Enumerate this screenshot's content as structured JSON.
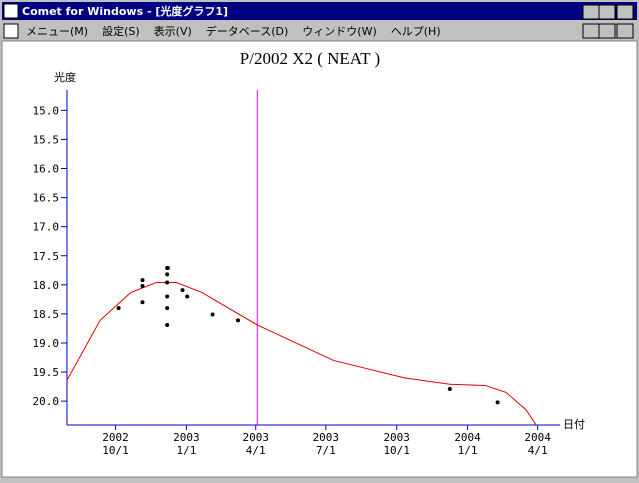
{
  "window": {
    "title": "Comet for Windows - [光度グラフ1]"
  },
  "menu": [
    "メニュー(M)",
    "設定(S)",
    "表示(V)",
    "データベース(D)",
    "ウィンドウ(W)",
    "ヘルプ(H)"
  ],
  "chart_data": {
    "type": "scatter",
    "title": "P/2002 X2 ( NEAT )",
    "ylabel": "光度",
    "xlabel": "日付",
    "x": [
      "2002-10-05",
      "2002-11-05",
      "2002-11-05",
      "2002-11-05",
      "2002-12-07",
      "2002-12-08",
      "2002-12-07",
      "2002-12-07",
      "2002-12-07",
      "2002-12-07",
      "2002-12-07",
      "2002-12-27",
      "2003-01-02",
      "2003-02-04",
      "2003-03-09",
      "2003-12-09",
      "2004-02-09"
    ],
    "values": [
      18.4,
      17.92,
      18.02,
      18.3,
      17.71,
      17.71,
      17.82,
      17.96,
      18.2,
      18.4,
      18.69,
      18.09,
      18.2,
      18.51,
      18.61,
      19.79,
      20.02
    ],
    "color": "#000000",
    "fit_curve": {
      "x": [
        "2002-07-30",
        "2002-09-11",
        "2002-10-21",
        "2002-11-23",
        "2002-12-19",
        "2003-01-21",
        "2003-04-03",
        "2003-07-11",
        "2003-10-11",
        "2003-12-09",
        "2004-01-24",
        "2004-02-20",
        "2004-03-17",
        "2004-03-30"
      ],
      "values": [
        19.64,
        18.61,
        18.13,
        17.96,
        17.96,
        18.13,
        18.69,
        19.3,
        19.6,
        19.71,
        19.73,
        19.85,
        20.15,
        20.41
      ],
      "color": "#e00000"
    },
    "marker_date": "2003-04-03",
    "marker_color": "#e000e0",
    "xlim": [
      "2002-07-30",
      "2004-04-30"
    ],
    "xticks": [
      {
        "value": "2002-10-01",
        "label": [
          "2002",
          "10/1"
        ]
      },
      {
        "value": "2003-01-01",
        "label": [
          "2003",
          "1/1"
        ]
      },
      {
        "value": "2003-04-01",
        "label": [
          "2003",
          "4/1"
        ]
      },
      {
        "value": "2003-07-01",
        "label": [
          "2003",
          "7/1"
        ]
      },
      {
        "value": "2003-10-01",
        "label": [
          "2003",
          "10/1"
        ]
      },
      {
        "value": "2004-01-01",
        "label": [
          "2004",
          "1/1"
        ]
      },
      {
        "value": "2004-04-01",
        "label": [
          "2004",
          "4/1"
        ]
      }
    ],
    "ylim": [
      14.65,
      20.41
    ],
    "y_inverted": true,
    "yticks": [
      {
        "value": 15,
        "label": "15.0"
      },
      {
        "value": 15.5,
        "label": "15.5"
      },
      {
        "value": 16,
        "label": "16.0"
      },
      {
        "value": 16.5,
        "label": "16.5"
      },
      {
        "value": 17,
        "label": "17.0"
      },
      {
        "value": 17.5,
        "label": "17.5"
      },
      {
        "value": 18,
        "label": "18.0"
      },
      {
        "value": 18.5,
        "label": "18.5"
      },
      {
        "value": 19,
        "label": "19.0"
      },
      {
        "value": 19.5,
        "label": "19.5"
      },
      {
        "value": 20,
        "label": "20.0"
      }
    ],
    "axis_color": "#0000c0"
  }
}
